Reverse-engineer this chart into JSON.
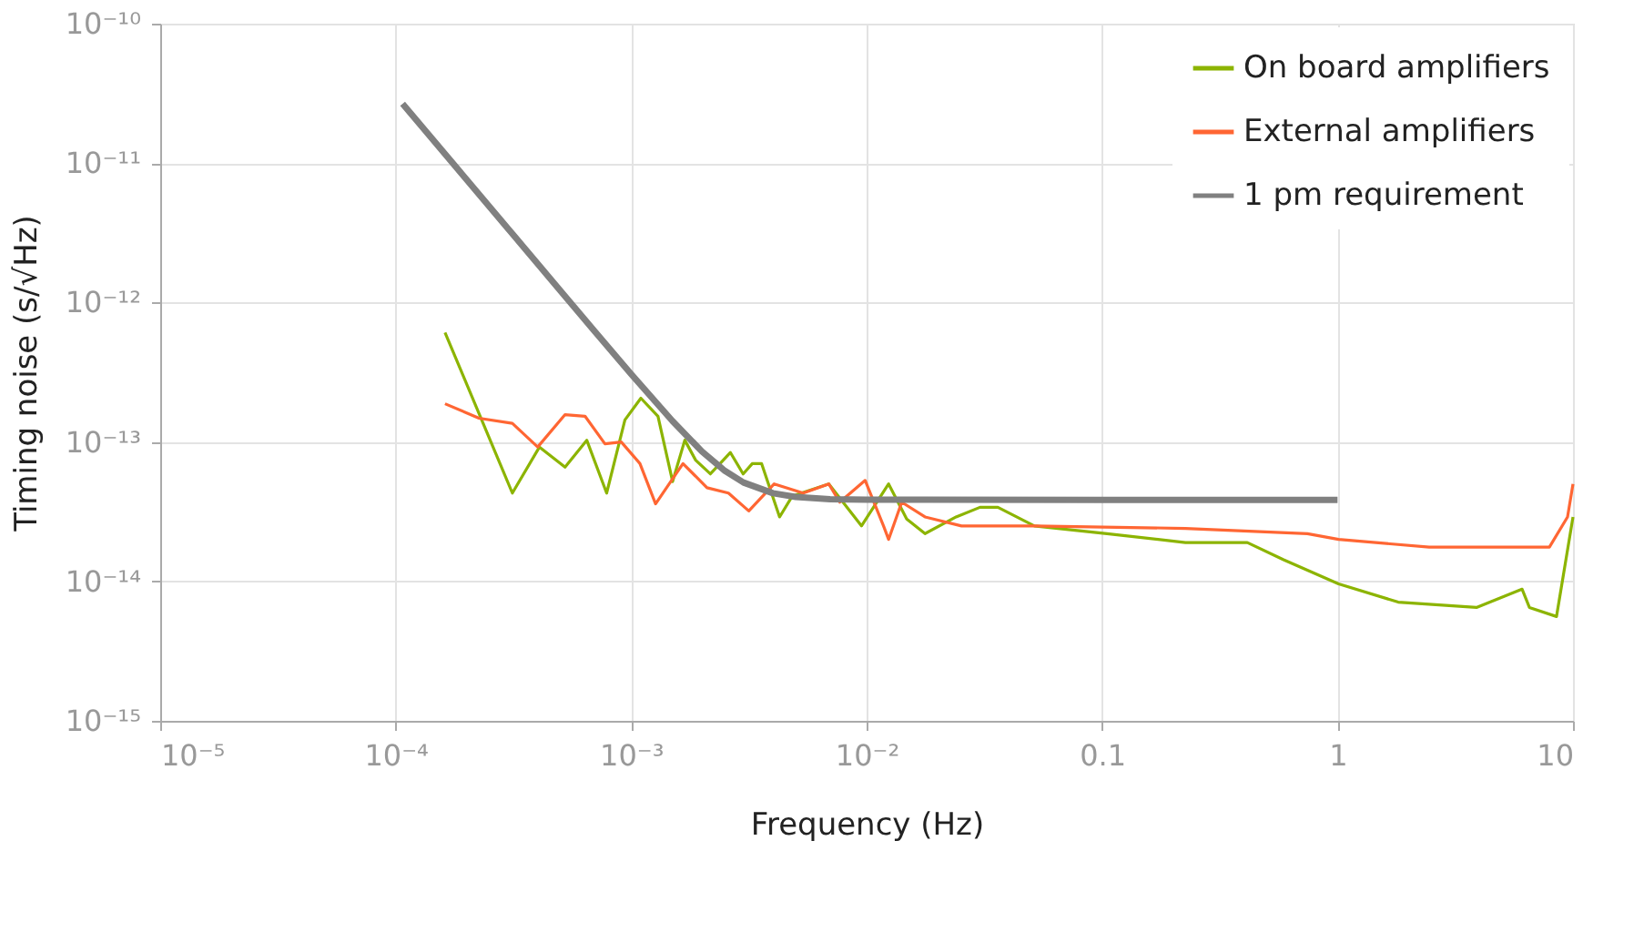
{
  "chart_data": {
    "type": "line",
    "xlabel": "Frequency (Hz)",
    "ylabel": "Timing noise (s/√Hz)",
    "log": "xy",
    "grid": true,
    "legend": "top right",
    "xlim": [
      1e-05,
      10
    ],
    "ylim": [
      1e-15,
      1e-10
    ],
    "xticks": [
      {
        "value": 1e-05,
        "label": "10⁻⁵"
      },
      {
        "value": 0.0001,
        "label": "10⁻⁴"
      },
      {
        "value": 0.001,
        "label": "10⁻³"
      },
      {
        "value": 0.01,
        "label": "10⁻²"
      },
      0.1,
      1,
      10
    ],
    "yticks": [
      {
        "value": 1e-15,
        "label": "10⁻¹⁵"
      },
      {
        "value": 1e-14,
        "label": "10⁻¹⁴"
      },
      {
        "value": 1e-13,
        "label": "10⁻¹³"
      },
      {
        "value": 1e-12,
        "label": "10⁻¹²"
      },
      {
        "value": 1e-11,
        "label": "10⁻¹¹"
      },
      {
        "value": 1e-10,
        "label": "10⁻¹⁰"
      }
    ],
    "series": [
      {
        "name": "On board amplifiers",
        "color": "#8cb400",
        "x": [
          0.000162,
          0.000313,
          0.000408,
          0.000524,
          0.000648,
          0.000787,
          0.000941,
          0.0011,
          0.0013,
          0.0015,
          0.00169,
          0.00188,
          0.00217,
          0.00264,
          0.00299,
          0.00327,
          0.00358,
          0.00427,
          0.00484,
          0.00691,
          0.00951,
          0.0124,
          0.0148,
          0.0177,
          0.024,
          0.0303,
          0.0361,
          0.0516,
          0.105,
          0.226,
          0.414,
          0.59,
          1.01,
          1.81,
          3.89,
          6.08,
          6.53,
          8.51,
          10
        ],
        "values": [
          6.1e-13,
          4.3e-14,
          9.2e-14,
          6.6e-14,
          1.03e-13,
          4.3e-14,
          1.44e-13,
          2.06e-13,
          1.53e-13,
          5.2e-14,
          1.03e-13,
          7.4e-14,
          5.9e-14,
          8.4e-14,
          5.9e-14,
          7e-14,
          7e-14,
          2.9e-14,
          4.1e-14,
          5e-14,
          2.5e-14,
          5e-14,
          2.8e-14,
          2.2e-14,
          2.9e-14,
          3.4e-14,
          3.4e-14,
          2.5e-14,
          2.2e-14,
          1.9e-14,
          1.9e-14,
          1.43e-14,
          9.6e-15,
          7.1e-15,
          6.5e-15,
          8.8e-15,
          6.5e-15,
          5.6e-15,
          2.9e-14
        ]
      },
      {
        "name": "External amplifiers",
        "color": "#ff6633",
        "x": [
          0.000162,
          0.000226,
          0.000313,
          0.000401,
          0.000524,
          0.000637,
          0.000774,
          0.000908,
          0.00109,
          0.00127,
          0.00166,
          0.0021,
          0.00259,
          0.00316,
          0.00405,
          0.00538,
          0.00691,
          0.00769,
          0.00986,
          0.0118,
          0.0124,
          0.0141,
          0.0177,
          0.0253,
          0.0516,
          0.226,
          0.745,
          1.01,
          2.45,
          7.94,
          9.48,
          10
        ],
        "values": [
          1.88e-13,
          1.48e-13,
          1.36e-13,
          9.2e-14,
          1.57e-13,
          1.53e-13,
          9.7e-14,
          1e-13,
          7e-14,
          3.6e-14,
          7e-14,
          4.7e-14,
          4.3e-14,
          3.2e-14,
          5e-14,
          4.3e-14,
          5e-14,
          3.7e-14,
          5.3e-14,
          2.5e-14,
          2e-14,
          3.7e-14,
          2.9e-14,
          2.5e-14,
          2.5e-14,
          2.4e-14,
          2.2e-14,
          2e-14,
          1.76e-14,
          1.76e-14,
          2.9e-14,
          5e-14
        ]
      },
      {
        "name": "1 pm requirement",
        "color": "#808080",
        "x": [
          0.000107,
          0.0002,
          0.0003,
          0.0005,
          0.0007,
          0.001,
          0.0015,
          0.002,
          0.0025,
          0.003,
          0.004,
          0.005,
          0.007,
          0.01,
          0.1,
          1
        ],
        "values": [
          2.66e-11,
          7.63e-12,
          3.39e-12,
          1.22e-12,
          6.22e-13,
          3.07e-13,
          1.41e-13,
          8.54e-14,
          6.21e-14,
          5.12e-14,
          4.29e-14,
          4.03e-14,
          3.89e-14,
          3.86e-14,
          3.84e-14,
          3.84e-14
        ]
      }
    ]
  }
}
